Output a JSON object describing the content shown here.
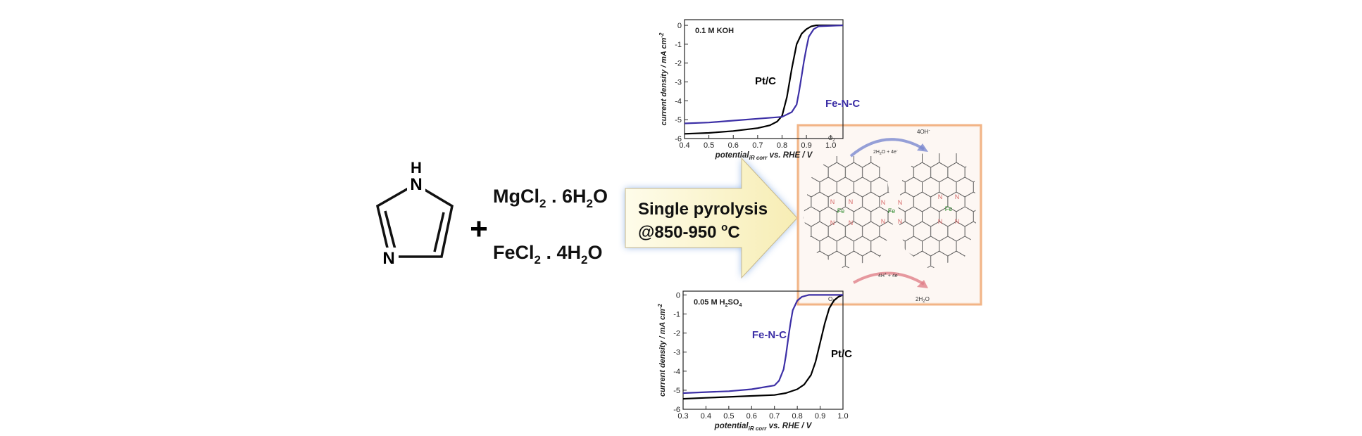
{
  "imidazole": {
    "nh_label": "H",
    "n_top": "N",
    "n_bottom": "N"
  },
  "plus_sign": "+",
  "reagents": {
    "mgcl2": {
      "base": "MgCl",
      "sub": "2",
      "tail": " . 6H",
      "sub2": "2",
      "tail2": "O"
    },
    "fecl2": {
      "base": "FeCl",
      "sub": "2",
      "tail": " . 4H",
      "sub2": "2",
      "tail2": "O"
    }
  },
  "arrow": {
    "line1": "Single pyrolysis",
    "line2_prefix": "@850-950 ",
    "line2_sup": "o",
    "line2_suffix": "C"
  },
  "colors": {
    "fe_n_c": "#3c2fa6",
    "pt_c": "#000000",
    "arrow_fill": "#fdf7d6",
    "arrow_glow": "#8fb3e6",
    "box_border": "#f2b486",
    "arrow_blue": "#7a88cf",
    "arrow_red": "#e08088",
    "nitrogen": "#d66a6a",
    "iron": "#2a8a2a"
  },
  "mechanism": {
    "top_left": "O",
    "top_left_sub": "2",
    "top_mid_a": "2H",
    "top_mid_a_sub": "2",
    "top_mid_b": "O + 4e",
    "top_mid_b_sup": "-",
    "top_right": "4OH",
    "top_right_sup": "-",
    "bottom_left": "O",
    "bottom_left_sub": "2",
    "bottom_mid_a": "4H",
    "bottom_mid_a_sup": "+",
    "bottom_mid_b": " + 4e",
    "bottom_mid_b_sup": "-",
    "bottom_right_a": "2H",
    "bottom_right_sub": "2",
    "bottom_right_b": "O",
    "fe_label": "Fe",
    "n_label": "N"
  },
  "chart_data": [
    {
      "type": "line",
      "annotation": "0.1 M KOH",
      "xlabel": "potential",
      "xlabel_sub": "iR corr",
      "xlabel_tail": " vs. RHE / V",
      "ylabel": "current density / mA cm",
      "ylabel_sup": "-2",
      "xlim": [
        0.4,
        1.05
      ],
      "ylim": [
        -6,
        0.3
      ],
      "xticks": [
        "0.4",
        "0.5",
        "0.6",
        "0.7",
        "0.8",
        "0.9",
        "1.0"
      ],
      "yticks": [
        "0",
        "-1",
        "-2",
        "-3",
        "-4",
        "-5",
        "-6"
      ],
      "series": [
        {
          "name": "Pt/C",
          "color": "#000000",
          "x": [
            0.4,
            0.5,
            0.6,
            0.7,
            0.75,
            0.78,
            0.8,
            0.82,
            0.84,
            0.86,
            0.88,
            0.9,
            0.92,
            0.94,
            0.96,
            1.05
          ],
          "y": [
            -5.75,
            -5.7,
            -5.6,
            -5.45,
            -5.3,
            -5.1,
            -4.8,
            -3.8,
            -2.3,
            -1.0,
            -0.45,
            -0.2,
            -0.05,
            0,
            0,
            0
          ]
        },
        {
          "name": "Fe-N-C",
          "color": "#3c2fa6",
          "x": [
            0.4,
            0.5,
            0.6,
            0.7,
            0.8,
            0.84,
            0.86,
            0.87,
            0.88,
            0.89,
            0.9,
            0.91,
            0.93,
            0.95,
            1.05
          ],
          "y": [
            -5.2,
            -5.15,
            -5.05,
            -4.95,
            -4.85,
            -4.6,
            -4.2,
            -3.5,
            -2.7,
            -1.9,
            -1.2,
            -0.6,
            -0.2,
            -0.05,
            0
          ]
        }
      ]
    },
    {
      "type": "line",
      "annotation_a": "0.05 M H",
      "annotation_sub": "2",
      "annotation_b": "SO",
      "annotation_sub2": "4",
      "xlabel": "potential",
      "xlabel_sub": "iR corr",
      "xlabel_tail": " vs. RHE / V",
      "ylabel": "current density / mA cm",
      "ylabel_sup": "-2",
      "xlim": [
        0.3,
        1.0
      ],
      "ylim": [
        -6,
        0.2
      ],
      "xticks": [
        "0.3",
        "0.4",
        "0.5",
        "0.6",
        "0.7",
        "0.8",
        "0.9",
        "1.0"
      ],
      "yticks": [
        "0",
        "-1",
        "-2",
        "-3",
        "-4",
        "-5",
        "-6"
      ],
      "series": [
        {
          "name": "Pt/C",
          "color": "#000000",
          "x": [
            0.3,
            0.4,
            0.5,
            0.6,
            0.7,
            0.75,
            0.8,
            0.83,
            0.86,
            0.88,
            0.9,
            0.92,
            0.94,
            0.96,
            0.98,
            1.0
          ],
          "y": [
            -5.45,
            -5.4,
            -5.35,
            -5.3,
            -5.25,
            -5.15,
            -4.95,
            -4.7,
            -4.2,
            -3.5,
            -2.5,
            -1.5,
            -0.7,
            -0.3,
            -0.1,
            0
          ]
        },
        {
          "name": "Fe-N-C",
          "color": "#3c2fa6",
          "x": [
            0.3,
            0.4,
            0.5,
            0.6,
            0.7,
            0.72,
            0.74,
            0.75,
            0.76,
            0.77,
            0.78,
            0.8,
            0.82,
            0.85,
            1.0
          ],
          "y": [
            -5.15,
            -5.1,
            -5.05,
            -4.95,
            -4.75,
            -4.5,
            -3.9,
            -3.2,
            -2.3,
            -1.5,
            -0.8,
            -0.3,
            -0.1,
            0,
            0
          ]
        }
      ]
    }
  ]
}
